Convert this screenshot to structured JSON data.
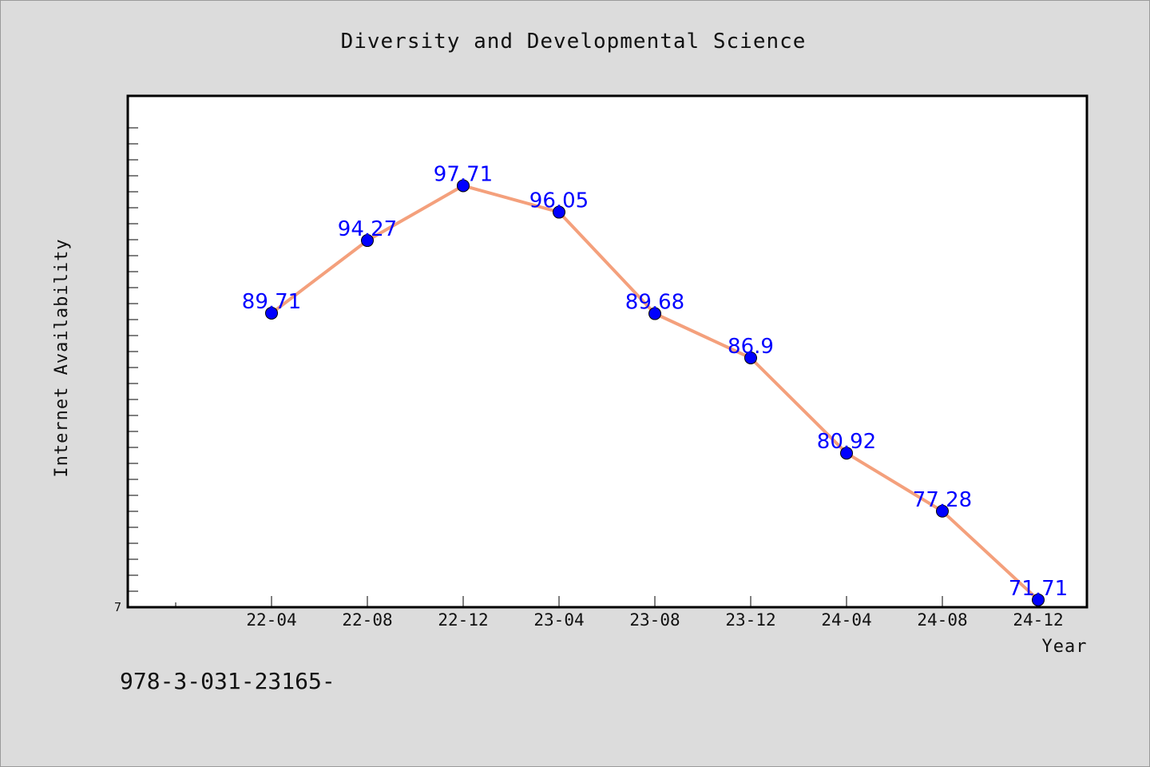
{
  "chart_data": {
    "type": "line",
    "title": "Diversity and Developmental Science",
    "xlabel": "Year",
    "ylabel": "Internet Availability",
    "categories": [
      "22-04",
      "22-08",
      "22-12",
      "23-04",
      "23-08",
      "23-12",
      "24-04",
      "24-08",
      "24-12"
    ],
    "series": [
      {
        "values": [
          89.71,
          94.27,
          97.71,
          96.05,
          89.68,
          86.9,
          80.92,
          77.28,
          71.71
        ],
        "labels": [
          "89.71",
          "94.27",
          "97.71",
          "96.05",
          "89.68",
          "86.9",
          "80.92",
          "77.28",
          "71.71"
        ],
        "line_color": "#f4a07c",
        "marker_color": "#0000ff"
      }
    ],
    "ylim": [
      71.25,
      103.35
    ],
    "yticks": [
      {
        "value": 71.25,
        "label": "7"
      }
    ],
    "grid": false,
    "legend": "none"
  },
  "footer": {
    "text": "978-3-031-23165-"
  }
}
